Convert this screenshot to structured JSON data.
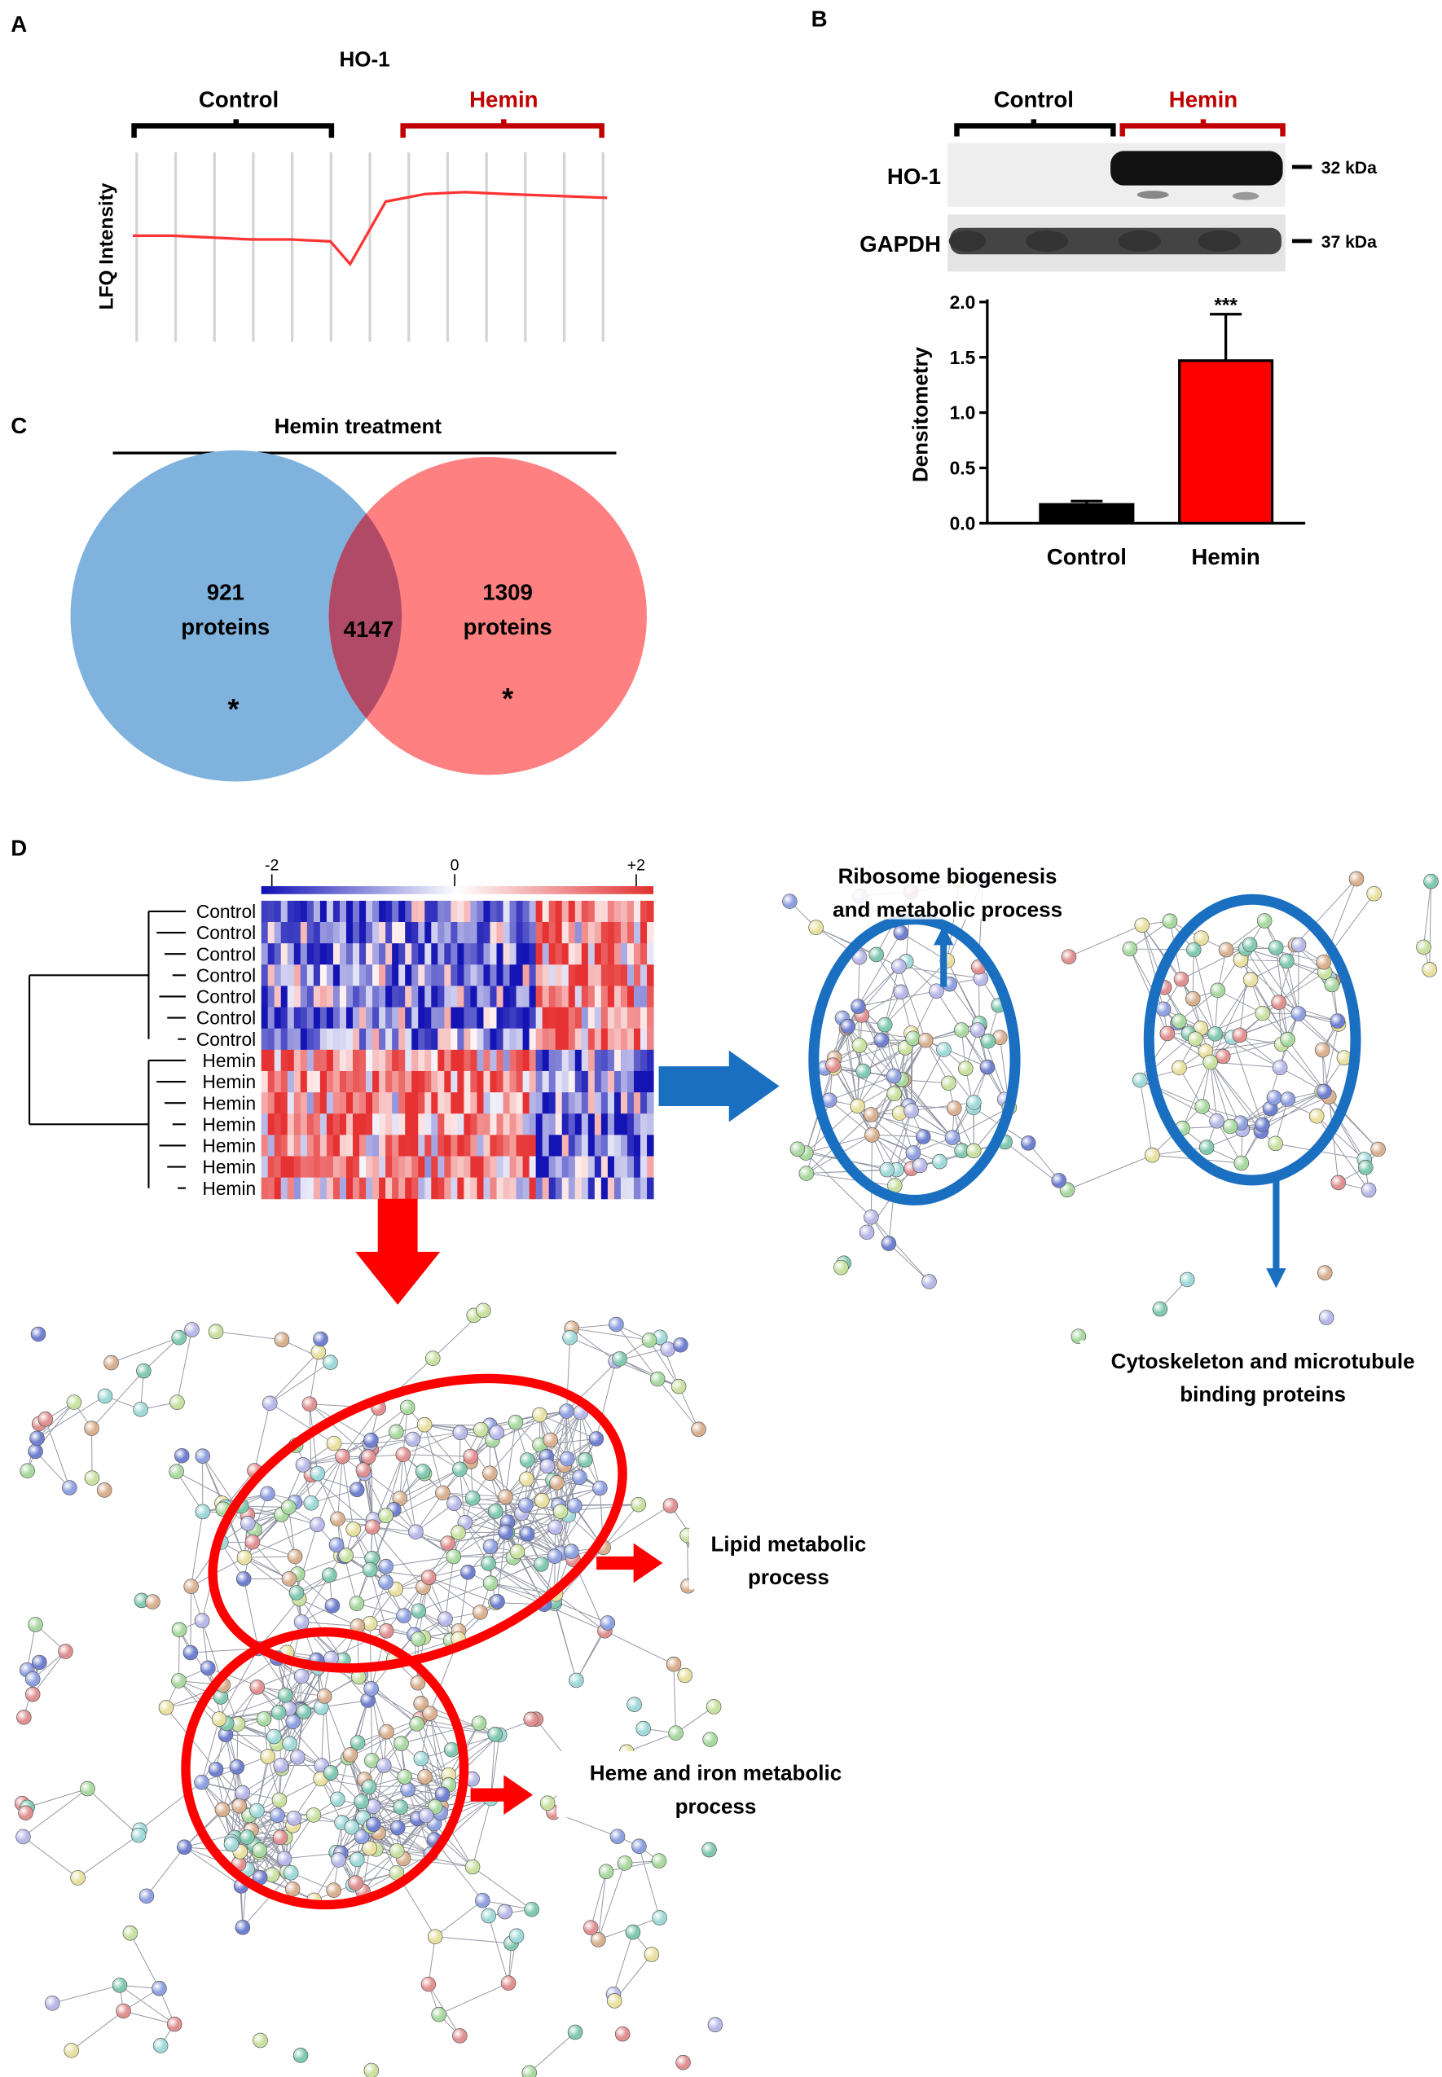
{
  "panel_labels": [
    "A",
    "B",
    "C",
    "D"
  ],
  "chart_data": [
    {
      "type": "line",
      "title": "HO-1",
      "y_label": "LFQ Intensity",
      "groups": [
        {
          "name": "Control",
          "color": "#000000"
        },
        {
          "name": "Hemin",
          "color": "#c00000"
        }
      ],
      "x": [
        0,
        1,
        2,
        3,
        4,
        5,
        5.5,
        6.4,
        7.4,
        8.4,
        9.4,
        10.7,
        12
      ],
      "values": [
        5.6,
        5.6,
        5.5,
        5.4,
        5.4,
        5.3,
        4.1,
        7.4,
        7.8,
        7.9,
        7.8,
        7.7,
        7.6
      ],
      "xlim": [
        0,
        12
      ],
      "ylim": [
        0,
        10
      ],
      "color": "#ff3333"
    },
    {
      "type": "bar",
      "y_label": "Densitometry",
      "categories": [
        "Control",
        "Hemin"
      ],
      "values": [
        0.17,
        1.47
      ],
      "errors": [
        0.03,
        0.42
      ],
      "colors": [
        "#000000",
        "#ff0000"
      ],
      "ylim": [
        0,
        2
      ],
      "yticks": [
        {
          "value": 0,
          "label": "0.0"
        },
        0.5,
        {
          "value": 1,
          "label": "1.0"
        },
        1.5,
        {
          "value": 2,
          "label": "2.0"
        }
      ],
      "significance": "***"
    }
  ],
  "blot": {
    "groups": [
      "Control",
      "Hemin"
    ],
    "rows": [
      "HO-1",
      "GAPDH"
    ],
    "markers": [
      "32 kDa",
      "37 kDa"
    ]
  },
  "venn": {
    "title": "Hemin treatment",
    "sets": [
      {
        "count": 921,
        "label": "proteins",
        "mark": "*",
        "color": "#7fb3dd"
      },
      {
        "count": 1309,
        "label": "proteins",
        "mark": "*",
        "color": "#ff8080"
      }
    ],
    "overlap": 4147
  },
  "heatmap": {
    "scale_labels": [
      "-2",
      "0",
      "+2"
    ],
    "rows": [
      "Control",
      "Control",
      "Control",
      "Control",
      "Control",
      "Control",
      "Control",
      "Hemin",
      "Hemin",
      "Hemin",
      "Hemin",
      "Hemin",
      "Hemin",
      "Hemin"
    ]
  },
  "networks": [
    {
      "lines": [
        "Ribosome biogenesis",
        "and metabolic process"
      ]
    },
    {
      "lines": [
        "Cytoskeleton and microtubule",
        "binding proteins"
      ]
    },
    {
      "lines": [
        "Lipid metabolic",
        "process"
      ]
    },
    {
      "lines": [
        "Heme and iron metabolic",
        "process"
      ]
    }
  ]
}
